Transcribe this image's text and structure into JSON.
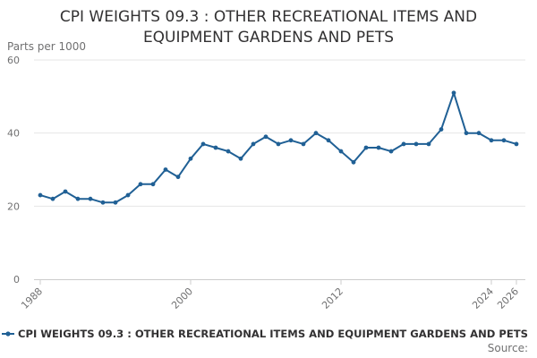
{
  "chart_data": {
    "type": "line",
    "title": "CPI WEIGHTS 09.3 : OTHER RECREATIONAL ITEMS AND EQUIPMENT GARDENS AND PETS",
    "title_lines": [
      "CPI WEIGHTS 09.3 : OTHER RECREATIONAL ITEMS AND",
      "EQUIPMENT GARDENS AND PETS"
    ],
    "ylabel": "Parts per 1000",
    "xlabel": "",
    "ylim": [
      0,
      60
    ],
    "yticks": [
      0,
      20,
      40,
      60
    ],
    "xlim": [
      1988,
      2026
    ],
    "xticks": [
      1988,
      2000,
      2012,
      2024,
      2026
    ],
    "grid": true,
    "legend_position": "bottom",
    "source_label": "Source:",
    "series": [
      {
        "name": "CPI WEIGHTS 09.3 : OTHER RECREATIONAL ITEMS AND EQUIPMENT GARDENS AND PETS",
        "color": "#206095",
        "x": [
          1988,
          1989,
          1990,
          1991,
          1992,
          1993,
          1994,
          1995,
          1996,
          1997,
          1998,
          1999,
          2000,
          2001,
          2002,
          2003,
          2004,
          2005,
          2006,
          2007,
          2008,
          2009,
          2010,
          2011,
          2012,
          2013,
          2014,
          2015,
          2016,
          2017,
          2018,
          2019,
          2020,
          2021,
          2022,
          2023,
          2024,
          2025,
          2026
        ],
        "values": [
          23,
          22,
          24,
          22,
          22,
          21,
          21,
          23,
          26,
          26,
          30,
          28,
          33,
          37,
          36,
          35,
          33,
          37,
          39,
          37,
          38,
          37,
          40,
          38,
          35,
          32,
          36,
          36,
          35,
          37,
          37,
          37,
          41,
          51,
          40,
          40,
          38,
          38,
          37
        ]
      }
    ]
  }
}
